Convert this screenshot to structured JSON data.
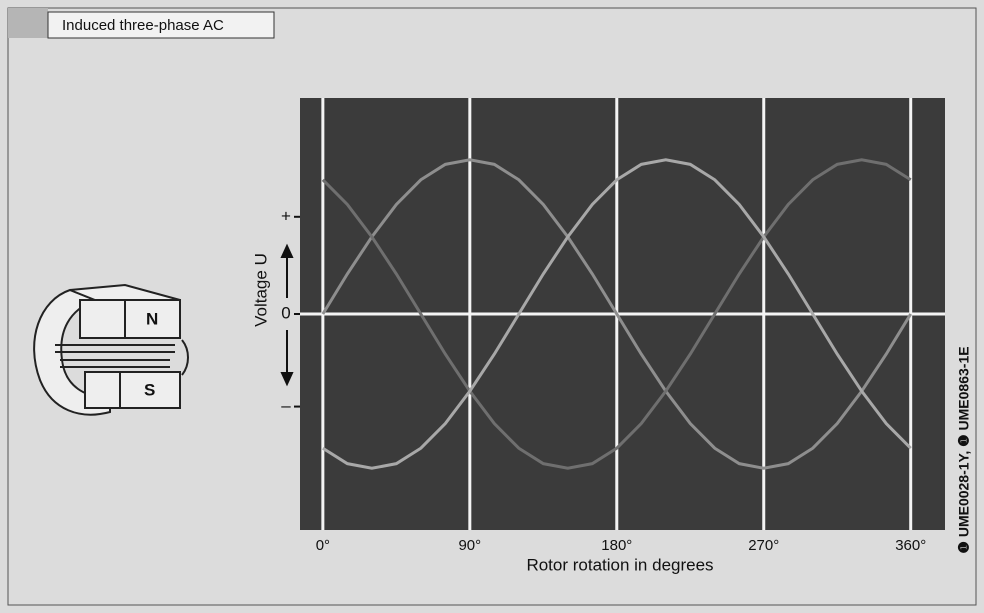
{
  "chart_data": {
    "type": "line",
    "title": "Induced three-phase AC",
    "x_label": "Rotor rotation in degrees",
    "y_label": "Voltage U",
    "side_note": "❶ UME0028-1Y, ❶ UME0863-1E",
    "x": [
      0,
      15,
      30,
      45,
      60,
      75,
      90,
      105,
      120,
      135,
      150,
      165,
      180,
      195,
      210,
      225,
      240,
      255,
      270,
      285,
      300,
      315,
      330,
      345,
      360
    ],
    "series": [
      {
        "color": "#8e8e8e",
        "values": [
          0,
          0.26,
          0.5,
          0.71,
          0.87,
          0.97,
          1,
          0.97,
          0.87,
          0.71,
          0.5,
          0.26,
          0,
          -0.26,
          -0.5,
          -0.71,
          -0.87,
          -0.97,
          -1,
          -0.97,
          -0.87,
          -0.71,
          -0.5,
          -0.26,
          0
        ]
      },
      {
        "color": "#6f6f6f",
        "values": [
          0.87,
          0.71,
          0.5,
          0.26,
          0,
          -0.26,
          -0.5,
          -0.71,
          -0.87,
          -0.97,
          -1,
          -0.97,
          -0.87,
          -0.71,
          -0.5,
          -0.26,
          0,
          0.26,
          0.5,
          0.71,
          0.87,
          0.97,
          1,
          0.97,
          0.87
        ]
      },
      {
        "color": "#a8a8a8",
        "values": [
          -0.87,
          -0.97,
          -1,
          -0.97,
          -0.87,
          -0.71,
          -0.5,
          -0.26,
          0,
          0.26,
          0.5,
          0.71,
          0.87,
          0.97,
          1,
          0.97,
          0.87,
          0.71,
          0.5,
          0.26,
          0,
          -0.26,
          -0.5,
          -0.71,
          -0.87
        ]
      }
    ],
    "xlim": [
      -14,
      381
    ],
    "ylim": [
      -1.4,
      1.4
    ],
    "xticks": [
      {
        "value": 0,
        "label": "0°"
      },
      {
        "value": 90,
        "label": "90°"
      },
      {
        "value": 180,
        "label": "180°"
      },
      {
        "value": 270,
        "label": "270°"
      },
      {
        "value": 360,
        "label": "360°"
      }
    ],
    "yticks": [
      {
        "value": -0.6,
        "label": "–"
      },
      0,
      {
        "value": 0.63,
        "label": "+"
      }
    ],
    "grid": "x"
  }
}
